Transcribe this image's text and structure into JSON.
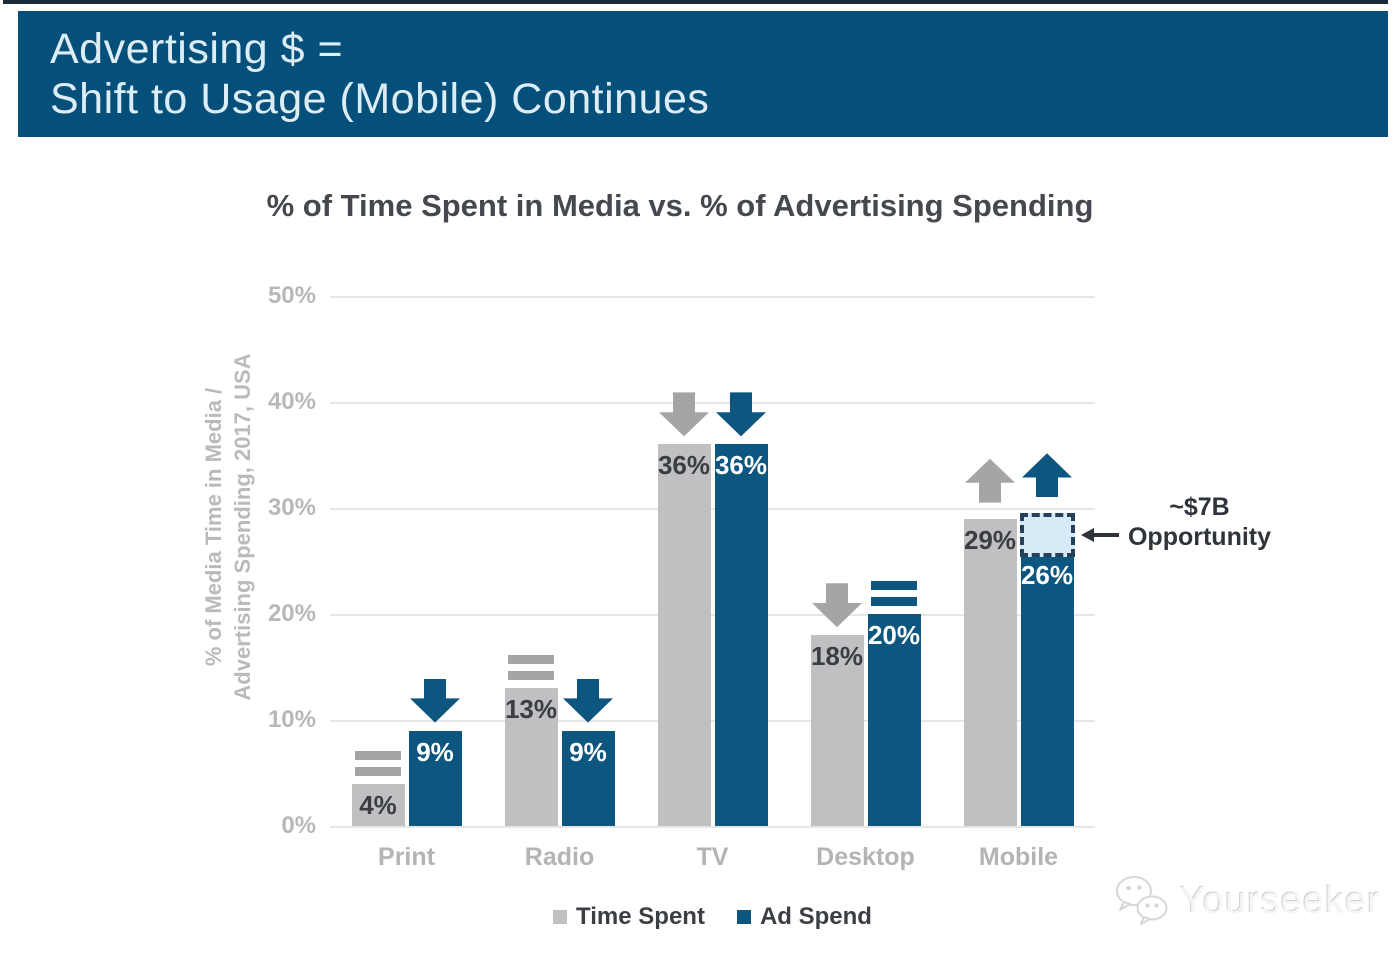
{
  "banner": {
    "title_line1": "Advertising $ =",
    "title_line2": "Shift to Usage (Mobile) Continues"
  },
  "chart_data": {
    "type": "bar",
    "title": "% of Time Spent in Media vs. % of Advertising Spending",
    "ylabel_line1": "% of Media Time in Media /",
    "ylabel_line2": "Advertising Spending, 2017, USA",
    "categories": [
      "Print",
      "Radio",
      "TV",
      "Desktop",
      "Mobile"
    ],
    "y_ticks": [
      "0%",
      "10%",
      "20%",
      "30%",
      "40%",
      "50%"
    ],
    "ylim": [
      0,
      50
    ],
    "grid": true,
    "legend_position": "bottom",
    "series": [
      {
        "name": "Time Spent",
        "color": "#c0c0c2",
        "icon_color": "#a5a5a7",
        "label_color": "#3a3e43",
        "values": [
          4,
          13,
          36,
          18,
          29
        ],
        "data_labels": [
          "4%",
          "13%",
          "36%",
          "18%",
          "29%"
        ],
        "trend_icons": [
          "flat",
          "flat",
          "down",
          "down",
          "up"
        ]
      },
      {
        "name": "Ad Spend",
        "color": "#0d567f",
        "icon_color": "#0d567f",
        "label_color": "#ffffff",
        "values": [
          9,
          9,
          36,
          20,
          26
        ],
        "data_labels": [
          "9%",
          "9%",
          "36%",
          "20%",
          "26%"
        ],
        "trend_icons": [
          "down",
          "down",
          "down",
          "flat",
          "up"
        ]
      }
    ],
    "annotation": {
      "line1": "~$7B",
      "line2": "Opportunity",
      "category": "Mobile",
      "series": "Ad Spend",
      "gap_from": 26,
      "gap_to": 29.5,
      "box_fill": "#d6ebf7",
      "box_border": "#24405a"
    }
  },
  "legend": {
    "items": [
      {
        "label": "Time Spent",
        "color": "#c0c0c2"
      },
      {
        "label": "Ad Spend",
        "color": "#0d567f"
      }
    ]
  },
  "watermark": {
    "text": "Yourseeker"
  }
}
